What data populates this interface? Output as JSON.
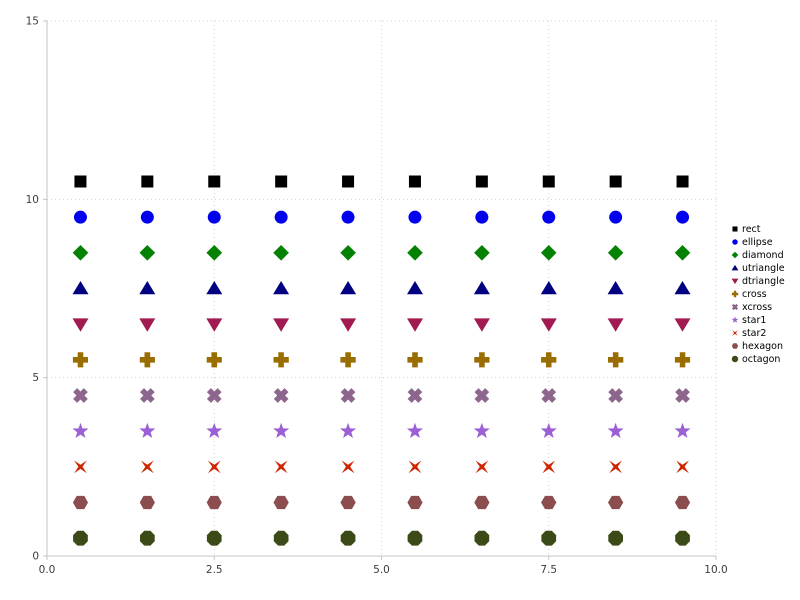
{
  "chart_data": {
    "type": "scatter",
    "title": "",
    "xlabel": "",
    "ylabel": "",
    "x": [
      0.5,
      1.5,
      2.5,
      3.5,
      4.5,
      5.5,
      6.5,
      7.5,
      8.5,
      9.5
    ],
    "series": [
      {
        "name": "rect",
        "marker": "rect",
        "color": "#000000",
        "y": 10.5
      },
      {
        "name": "ellipse",
        "marker": "ellipse",
        "color": "#0000ee",
        "y": 9.5
      },
      {
        "name": "diamond",
        "marker": "diamond",
        "color": "#038103",
        "y": 8.5
      },
      {
        "name": "utriangle",
        "marker": "utriangle",
        "color": "#000080",
        "y": 7.5
      },
      {
        "name": "dtriangle",
        "marker": "dtriangle",
        "color": "#a11a52",
        "y": 6.5
      },
      {
        "name": "cross",
        "marker": "cross",
        "color": "#9a6d00",
        "y": 5.5
      },
      {
        "name": "xcross",
        "marker": "xcross",
        "color": "#8d668d",
        "y": 4.5
      },
      {
        "name": "star1",
        "marker": "star1",
        "color": "#9b5fd6",
        "y": 3.5
      },
      {
        "name": "star2",
        "marker": "star2",
        "color": "#cd2600",
        "y": 2.5
      },
      {
        "name": "hexagon",
        "marker": "hexagon",
        "color": "#8b4d4d",
        "y": 1.5
      },
      {
        "name": "octagon",
        "marker": "octagon",
        "color": "#3b4a17",
        "y": 0.5
      }
    ],
    "xlim": [
      0,
      10
    ],
    "ylim": [
      0,
      15
    ],
    "xticks": {
      "values": [
        0,
        2.5,
        5,
        7.5,
        10
      ],
      "labels": [
        "0.0",
        "2.5",
        "5.0",
        "7.5",
        "10.0"
      ]
    },
    "yticks": {
      "values": [
        0,
        5,
        10,
        15
      ],
      "labels": [
        "0",
        "5",
        "10",
        "15"
      ]
    },
    "grid": true,
    "legend_position": "right",
    "legend_items": [
      "rect",
      "ellipse",
      "diamond",
      "utriangle",
      "dtriangle",
      "cross",
      "xcross",
      "star1",
      "star2",
      "hexagon",
      "octagon"
    ]
  },
  "style": {
    "background": "#ffffff",
    "grid_color": "#d2d2d2",
    "axis_color": "#c4c4c4",
    "tick_text_color": "#3c3c3c",
    "legend_text_color": "#000000"
  }
}
